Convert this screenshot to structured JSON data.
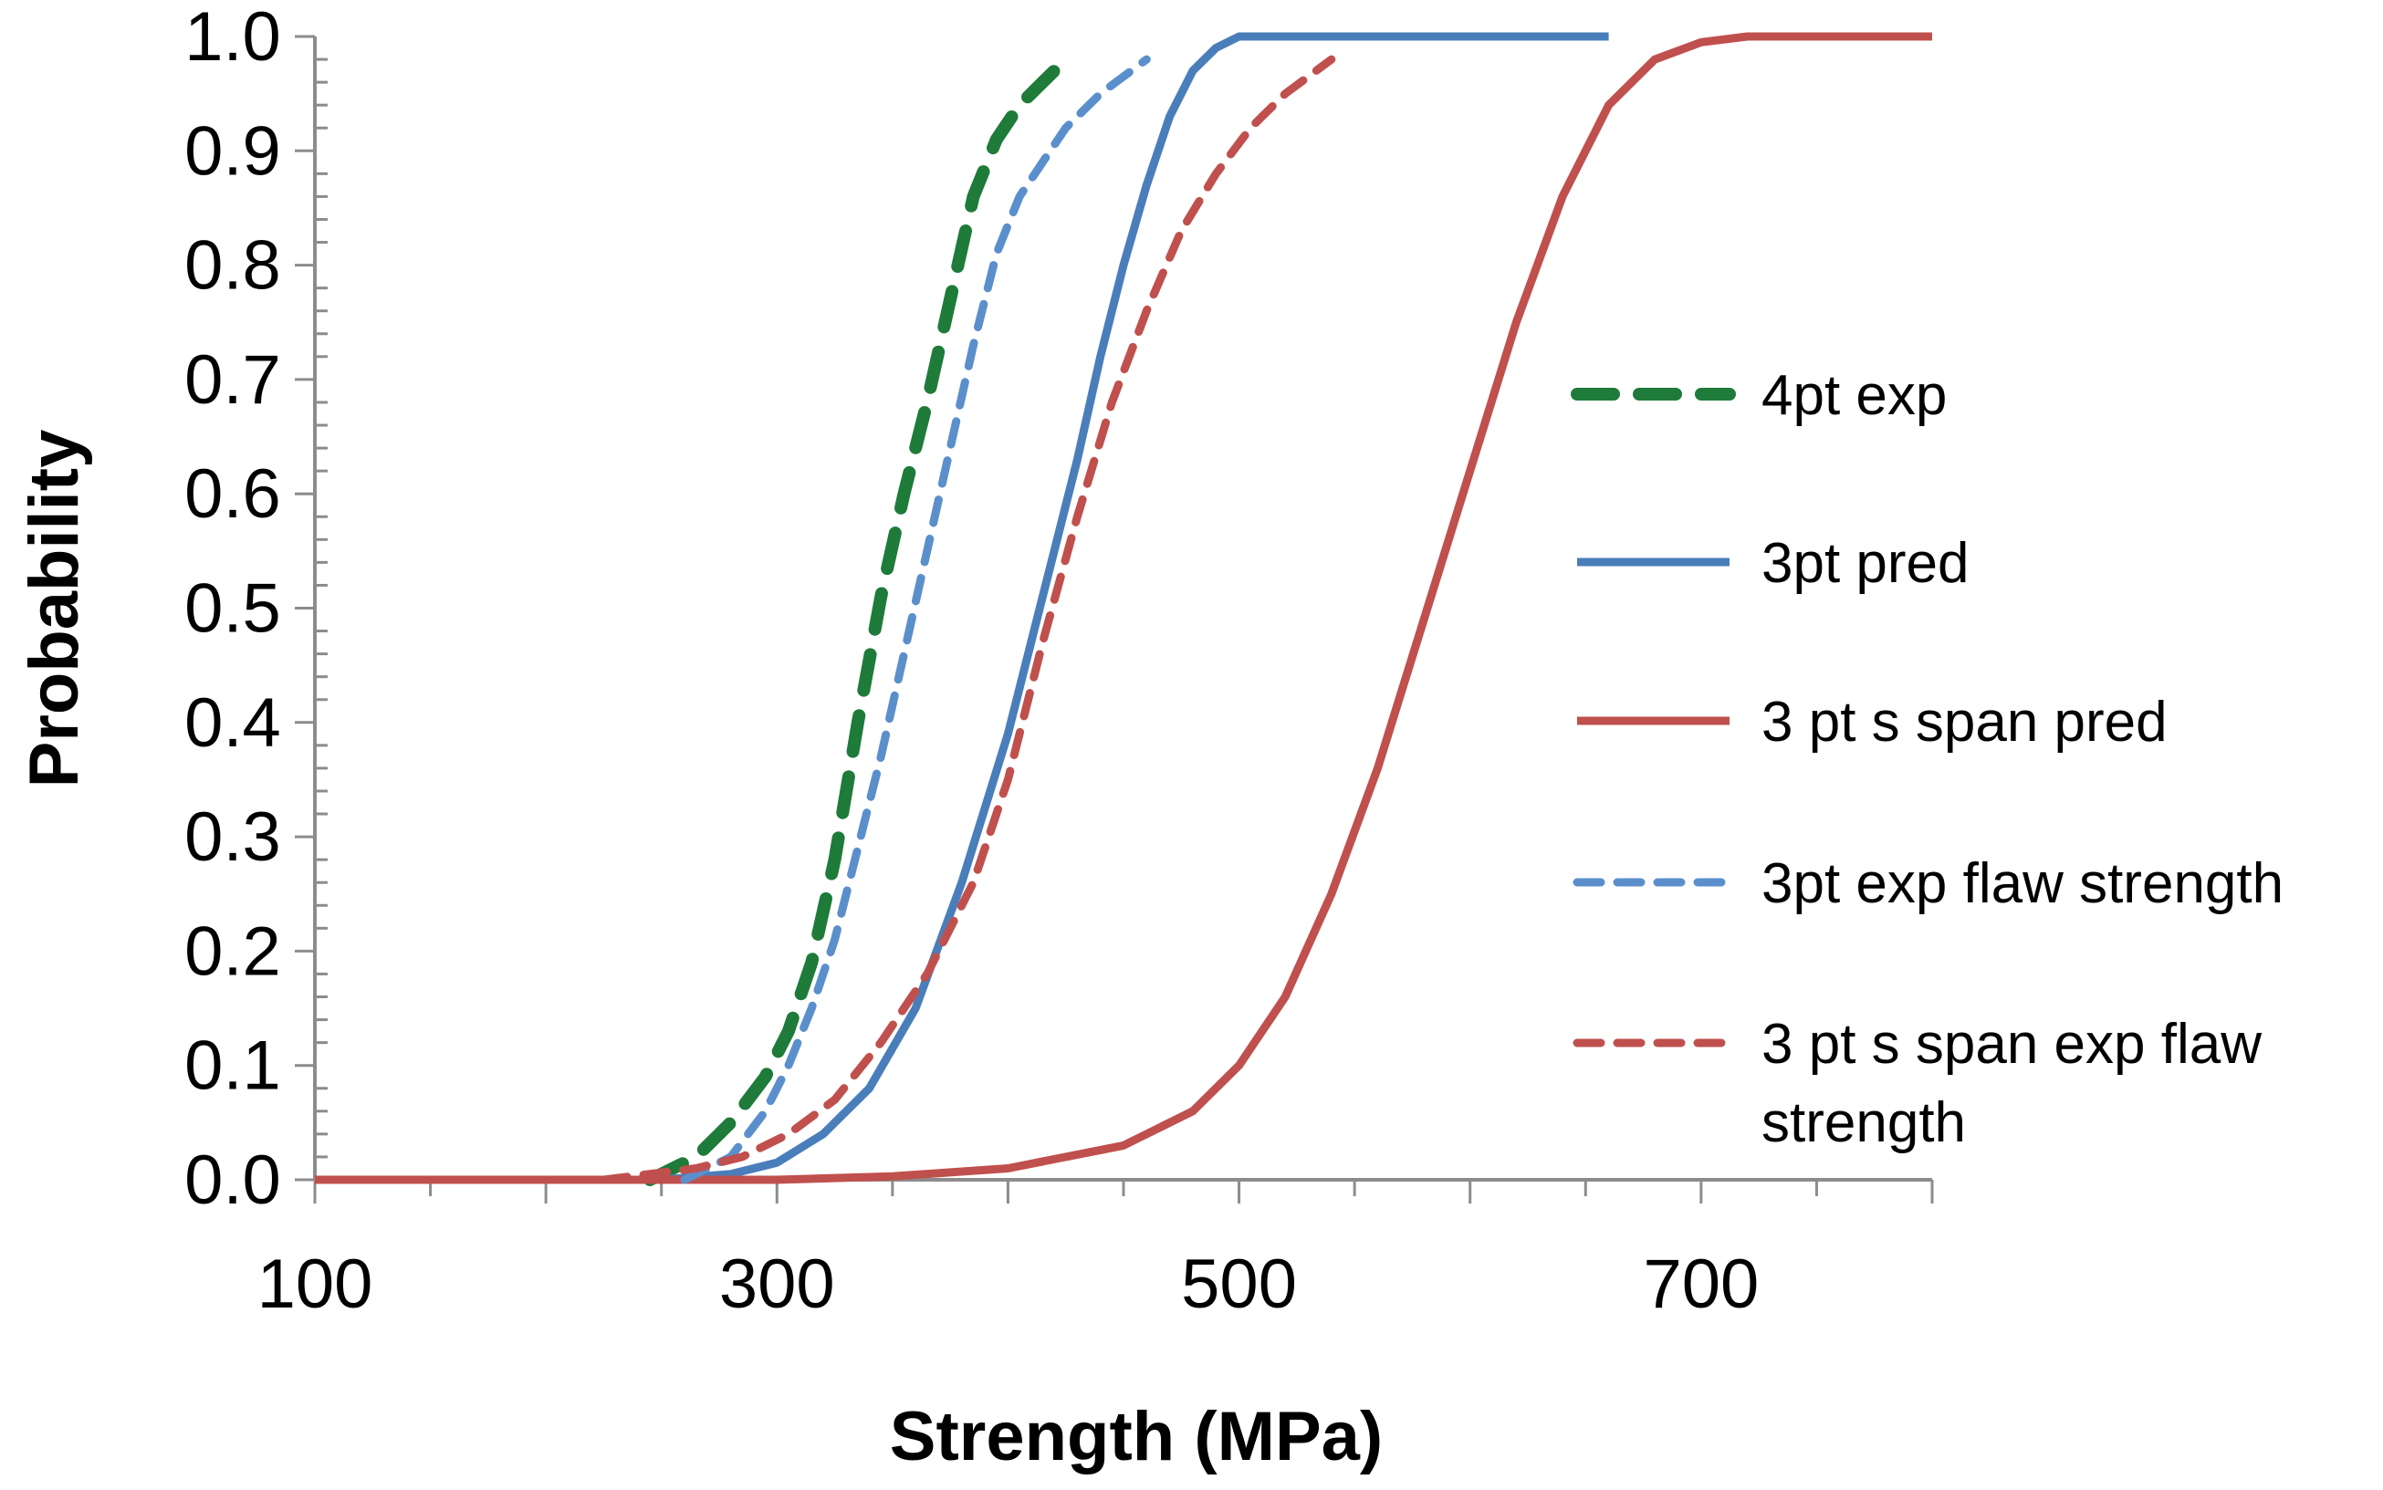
{
  "chart_data": {
    "type": "line",
    "title": "",
    "xlabel": "Strength (MPa)",
    "ylabel": "Probability",
    "xlim": [
      100,
      800
    ],
    "ylim": [
      0,
      1
    ],
    "x_ticks": [
      {
        "value": 100,
        "label": "100"
      },
      {
        "value": 300,
        "label": "300"
      },
      {
        "value": 500,
        "label": "500"
      },
      {
        "value": 700,
        "label": "700"
      }
    ],
    "y_ticks": [
      {
        "value": 0.0,
        "label": "0.0"
      },
      {
        "value": 0.1,
        "label": "0.1"
      },
      {
        "value": 0.2,
        "label": "0.2"
      },
      {
        "value": 0.3,
        "label": "0.3"
      },
      {
        "value": 0.4,
        "label": "0.4"
      },
      {
        "value": 0.5,
        "label": "0.5"
      },
      {
        "value": 0.6,
        "label": "0.6"
      },
      {
        "value": 0.7,
        "label": "0.7"
      },
      {
        "value": 0.8,
        "label": "0.8"
      },
      {
        "value": 0.9,
        "label": "0.9"
      },
      {
        "value": 1.0,
        "label": "1.0"
      }
    ],
    "grid": false,
    "legend_position": "right",
    "series": [
      {
        "name": "4pt exp",
        "color": "#1e7b3a",
        "style": "long-dash",
        "weight": "heavy",
        "x": [
          245,
          265,
          280,
          295,
          305,
          315,
          325,
          335,
          345,
          355,
          365,
          375,
          385,
          395,
          405,
          415,
          420
        ],
        "y": [
          0.0,
          0.02,
          0.05,
          0.09,
          0.13,
          0.19,
          0.28,
          0.4,
          0.51,
          0.6,
          0.68,
          0.77,
          0.86,
          0.91,
          0.94,
          0.96,
          0.97
        ]
      },
      {
        "name": "3pt pred",
        "color": "#4a7ebb",
        "style": "solid",
        "weight": "normal",
        "x": [
          100,
          200,
          250,
          280,
          300,
          320,
          340,
          360,
          380,
          400,
          410,
          420,
          430,
          440,
          450,
          460,
          470,
          480,
          490,
          500,
          520,
          560,
          660
        ],
        "y": [
          0.0,
          0.0,
          0.0,
          0.005,
          0.015,
          0.04,
          0.08,
          0.15,
          0.26,
          0.39,
          0.47,
          0.55,
          0.63,
          0.72,
          0.8,
          0.87,
          0.93,
          0.97,
          0.99,
          1.0,
          1.0,
          1.0,
          1.0
        ]
      },
      {
        "name": "3 pt s span pred",
        "color": "#c0504d",
        "style": "solid",
        "weight": "normal",
        "x": [
          100,
          200,
          300,
          350,
          400,
          450,
          480,
          500,
          520,
          540,
          560,
          580,
          600,
          620,
          640,
          660,
          680,
          700,
          720,
          800
        ],
        "y": [
          0.0,
          0.0,
          0.0,
          0.003,
          0.01,
          0.03,
          0.06,
          0.1,
          0.16,
          0.25,
          0.36,
          0.49,
          0.62,
          0.75,
          0.86,
          0.94,
          0.98,
          0.995,
          1.0,
          1.0
        ]
      },
      {
        "name": "3pt exp flaw strength",
        "color": "#5b8fcc",
        "style": "dash",
        "weight": "normal",
        "x": [
          260,
          280,
          295,
          305,
          315,
          325,
          335,
          345,
          355,
          365,
          375,
          385,
          395,
          405,
          415,
          425,
          440,
          460
        ],
        "y": [
          0.0,
          0.02,
          0.06,
          0.1,
          0.15,
          0.21,
          0.29,
          0.37,
          0.46,
          0.55,
          0.64,
          0.73,
          0.81,
          0.86,
          0.89,
          0.92,
          0.95,
          0.98
        ]
      },
      {
        "name": "3 pt s span exp flaw strength",
        "color": "#c0504d",
        "style": "dash",
        "weight": "normal",
        "x": [
          225,
          245,
          265,
          285,
          305,
          325,
          345,
          365,
          385,
          400,
          415,
          430,
          445,
          460,
          475,
          490,
          505,
          520,
          540
        ],
        "y": [
          0.0,
          0.005,
          0.01,
          0.02,
          0.04,
          0.07,
          0.12,
          0.18,
          0.26,
          0.35,
          0.47,
          0.58,
          0.68,
          0.76,
          0.83,
          0.88,
          0.92,
          0.95,
          0.98
        ]
      }
    ],
    "legend": [
      {
        "label": "4pt exp",
        "series_index": 0
      },
      {
        "label": "3pt pred",
        "series_index": 1
      },
      {
        "label": "3 pt s span pred",
        "series_index": 2
      },
      {
        "label": "3pt exp flaw strength",
        "series_index": 3
      },
      {
        "label": "3 pt s span exp flaw",
        "label_line2": "strength",
        "series_index": 4
      }
    ]
  }
}
